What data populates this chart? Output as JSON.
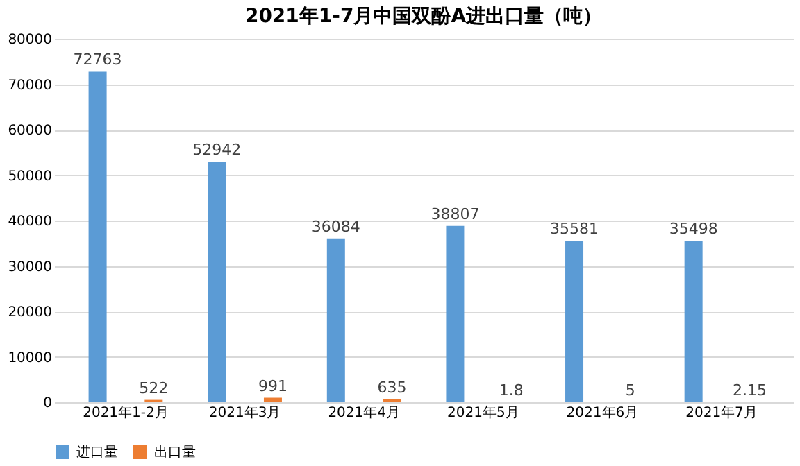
{
  "chart_data": {
    "type": "bar",
    "title": "2021年1-7月中国双酚A进出口量（吨）",
    "categories": [
      "2021年1-2月",
      "2021年3月",
      "2021年4月",
      "2021年5月",
      "2021年6月",
      "2021年7月"
    ],
    "series": [
      {
        "name": "进口量",
        "color": "#5b9bd5",
        "values": [
          72763,
          52942,
          36084,
          38807,
          35581,
          35498
        ]
      },
      {
        "name": "出口量",
        "color": "#ed7d31",
        "values": [
          522,
          991,
          635,
          1.8,
          5,
          2.15
        ]
      }
    ],
    "ylim": [
      0,
      80000
    ],
    "yticks": [
      0,
      10000,
      20000,
      30000,
      40000,
      50000,
      60000,
      70000,
      80000
    ],
    "grid": "y",
    "legend": "bottom",
    "data_labels": true
  }
}
